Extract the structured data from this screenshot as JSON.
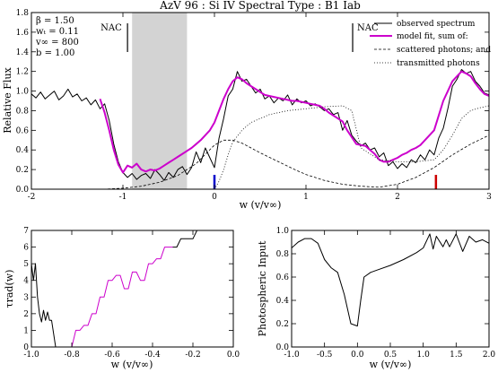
{
  "chart_data": [
    {
      "type": "line",
      "title": "AzV 96 : Si IV     Spectral Type : B1 Iab",
      "xlabel": "w (v/v∞)",
      "ylabel": "Relative Flux",
      "xlim": [
        -2,
        3
      ],
      "ylim": [
        0,
        1.8
      ],
      "xticks": [
        "-2",
        "-1",
        "0",
        "1",
        "2",
        "3"
      ],
      "yticks": [
        "0.0",
        "0.2",
        "0.4",
        "0.6",
        "0.8",
        "1.0",
        "1.2",
        "1.4",
        "1.6",
        "1.8"
      ],
      "params": [
        "β  = 1.50",
        "wₜ = 0.11",
        "v∞ = 800",
        "b  = 1.00"
      ],
      "nac_labels": [
        "NAC",
        "NAC"
      ],
      "nac_x": [
        -0.95,
        1.51
      ],
      "shaded_region": [
        -0.9,
        -0.3
      ],
      "markers": [
        {
          "x": 0.0,
          "color": "#0000cc"
        },
        {
          "x": 2.42,
          "color": "#cc0000"
        }
      ],
      "legend": {
        "position": "top-right",
        "entries": [
          "observed spectrum",
          "model fit, sum of:",
          "scattered photons; and",
          "transmitted photons"
        ]
      },
      "series": [
        {
          "name": "observed spectrum",
          "color": "#000000",
          "x": [
            -2.0,
            -1.95,
            -1.9,
            -1.85,
            -1.8,
            -1.75,
            -1.7,
            -1.65,
            -1.6,
            -1.55,
            -1.5,
            -1.45,
            -1.4,
            -1.35,
            -1.3,
            -1.25,
            -1.2,
            -1.15,
            -1.1,
            -1.05,
            -1.0,
            -0.95,
            -0.9,
            -0.85,
            -0.8,
            -0.75,
            -0.7,
            -0.65,
            -0.6,
            -0.55,
            -0.5,
            -0.45,
            -0.4,
            -0.35,
            -0.3,
            -0.25,
            -0.2,
            -0.15,
            -0.1,
            -0.05,
            0.0,
            0.05,
            0.1,
            0.15,
            0.2,
            0.25,
            0.3,
            0.35,
            0.4,
            0.45,
            0.5,
            0.55,
            0.6,
            0.65,
            0.7,
            0.75,
            0.8,
            0.85,
            0.9,
            0.95,
            1.0,
            1.05,
            1.1,
            1.15,
            1.2,
            1.25,
            1.3,
            1.35,
            1.4,
            1.45,
            1.5,
            1.55,
            1.6,
            1.65,
            1.7,
            1.75,
            1.8,
            1.85,
            1.9,
            1.95,
            2.0,
            2.05,
            2.1,
            2.15,
            2.2,
            2.25,
            2.3,
            2.35,
            2.4,
            2.45,
            2.5,
            2.55,
            2.6,
            2.65,
            2.7,
            2.75,
            2.8,
            2.85,
            2.9,
            2.95,
            3.0
          ],
          "y": [
            0.97,
            0.93,
            0.99,
            0.92,
            0.96,
            1.0,
            0.91,
            0.95,
            1.02,
            0.94,
            0.97,
            0.9,
            0.93,
            0.86,
            0.91,
            0.82,
            0.87,
            0.7,
            0.46,
            0.28,
            0.17,
            0.12,
            0.16,
            0.1,
            0.14,
            0.16,
            0.11,
            0.2,
            0.15,
            0.09,
            0.17,
            0.12,
            0.2,
            0.23,
            0.15,
            0.22,
            0.38,
            0.27,
            0.42,
            0.32,
            0.22,
            0.52,
            0.72,
            0.95,
            1.02,
            1.2,
            1.1,
            1.12,
            1.05,
            0.98,
            1.02,
            0.92,
            0.95,
            0.88,
            0.93,
            0.9,
            0.96,
            0.86,
            0.92,
            0.88,
            0.9,
            0.85,
            0.87,
            0.84,
            0.8,
            0.82,
            0.76,
            0.78,
            0.6,
            0.7,
            0.55,
            0.49,
            0.44,
            0.47,
            0.4,
            0.42,
            0.33,
            0.37,
            0.24,
            0.28,
            0.21,
            0.26,
            0.22,
            0.3,
            0.27,
            0.35,
            0.3,
            0.4,
            0.35,
            0.52,
            0.62,
            0.82,
            1.05,
            1.12,
            1.22,
            1.18,
            1.2,
            1.1,
            1.05,
            0.98,
            0.96
          ]
        },
        {
          "name": "model fit, sum of:",
          "color": "#cc00cc",
          "x": [
            -1.25,
            -1.2,
            -1.15,
            -1.1,
            -1.05,
            -1.0,
            -0.95,
            -0.9,
            -0.85,
            -0.8,
            -0.75,
            -0.7,
            -0.65,
            -0.6,
            -0.55,
            -0.5,
            -0.45,
            -0.4,
            -0.35,
            -0.3,
            -0.25,
            -0.2,
            -0.15,
            -0.1,
            -0.05,
            0.0,
            0.05,
            0.1,
            0.15,
            0.2,
            0.25,
            0.3,
            0.35,
            0.4,
            0.45,
            0.5,
            0.55,
            0.6,
            0.65,
            0.7,
            0.75,
            0.8,
            0.85,
            0.9,
            0.95,
            1.0,
            1.05,
            1.1,
            1.15,
            1.2,
            1.25,
            1.3,
            1.35,
            1.4,
            1.45,
            1.5,
            1.55,
            1.6,
            1.65,
            1.7,
            1.75,
            1.8,
            1.85,
            1.9,
            1.95,
            2.0,
            2.05,
            2.1,
            2.15,
            2.2,
            2.25,
            2.3,
            2.35,
            2.4,
            2.45,
            2.5,
            2.55,
            2.6,
            2.65,
            2.7,
            2.75,
            2.8,
            2.85,
            2.9,
            2.95,
            3.0
          ],
          "y": [
            0.92,
            0.78,
            0.6,
            0.4,
            0.25,
            0.17,
            0.24,
            0.22,
            0.26,
            0.2,
            0.18,
            0.2,
            0.19,
            0.21,
            0.24,
            0.27,
            0.3,
            0.33,
            0.36,
            0.39,
            0.42,
            0.46,
            0.5,
            0.55,
            0.6,
            0.68,
            0.8,
            0.92,
            1.02,
            1.1,
            1.14,
            1.12,
            1.08,
            1.05,
            1.02,
            0.99,
            0.96,
            0.95,
            0.94,
            0.93,
            0.92,
            0.91,
            0.9,
            0.9,
            0.89,
            0.88,
            0.87,
            0.86,
            0.85,
            0.82,
            0.78,
            0.75,
            0.72,
            0.69,
            0.6,
            0.53,
            0.46,
            0.45,
            0.44,
            0.4,
            0.36,
            0.3,
            0.28,
            0.28,
            0.3,
            0.32,
            0.35,
            0.37,
            0.4,
            0.42,
            0.45,
            0.5,
            0.55,
            0.6,
            0.75,
            0.9,
            1.0,
            1.1,
            1.15,
            1.2,
            1.18,
            1.15,
            1.08,
            1.02,
            0.97,
            0.95
          ]
        },
        {
          "name": "scattered photons; and",
          "color": "#000000",
          "dash": "3,2",
          "x": [
            -2.0,
            -1.5,
            -1.2,
            -1.0,
            -0.8,
            -0.6,
            -0.4,
            -0.2,
            0.0,
            0.1,
            0.2,
            0.3,
            0.4,
            0.5,
            0.7,
            0.9,
            1.0,
            1.2,
            1.4,
            1.6,
            1.8,
            2.0,
            2.2,
            2.4,
            2.6,
            2.8,
            3.0
          ],
          "y": [
            0.0,
            0.0,
            0.0,
            0.01,
            0.03,
            0.07,
            0.14,
            0.26,
            0.45,
            0.5,
            0.5,
            0.47,
            0.42,
            0.37,
            0.28,
            0.19,
            0.15,
            0.09,
            0.05,
            0.03,
            0.02,
            0.05,
            0.12,
            0.22,
            0.35,
            0.46,
            0.55
          ]
        },
        {
          "name": "transmitted photons",
          "color": "#000000",
          "dash": "1,2",
          "x": [
            0.0,
            0.05,
            0.1,
            0.15,
            0.2,
            0.3,
            0.4,
            0.6,
            0.8,
            1.0,
            1.2,
            1.4,
            1.5,
            1.6,
            1.8,
            2.0,
            2.2,
            2.4,
            2.5,
            2.6,
            2.7,
            2.8,
            2.9,
            3.0
          ],
          "y": [
            0.0,
            0.08,
            0.2,
            0.35,
            0.48,
            0.6,
            0.68,
            0.76,
            0.8,
            0.82,
            0.84,
            0.85,
            0.8,
            0.42,
            0.3,
            0.28,
            0.28,
            0.3,
            0.4,
            0.55,
            0.72,
            0.8,
            0.83,
            0.85
          ]
        }
      ]
    },
    {
      "type": "line",
      "xlabel": "w (v/v∞)",
      "ylabel": "τrad(w)",
      "xlim": [
        -1.0,
        0.0
      ],
      "ylim": [
        0,
        7
      ],
      "xticks": [
        "-1.0",
        "-0.8",
        "-0.6",
        "-0.4",
        "-0.2",
        "0.0"
      ],
      "yticks": [
        "0",
        "1",
        "2",
        "3",
        "4",
        "5",
        "6",
        "7"
      ],
      "series": [
        {
          "color": "#000000",
          "x": [
            -1.0,
            -0.99,
            -0.98,
            -0.97,
            -0.96,
            -0.95,
            -0.94,
            -0.93,
            -0.92,
            -0.91,
            -0.9,
            -0.88,
            -0.86
          ],
          "y": [
            5.0,
            4.0,
            5.0,
            3.0,
            2.0,
            1.5,
            2.2,
            1.6,
            2.1,
            1.6,
            1.6,
            0.0,
            0.0
          ]
        },
        {
          "color": "#cc00cc",
          "x": [
            -0.86,
            -0.84,
            -0.82,
            -0.8,
            -0.78,
            -0.76,
            -0.74,
            -0.72,
            -0.7,
            -0.68,
            -0.66,
            -0.64,
            -0.62,
            -0.6,
            -0.58,
            -0.56,
            -0.54,
            -0.52,
            -0.5,
            -0.48,
            -0.46,
            -0.44,
            -0.42,
            -0.4,
            -0.38,
            -0.36,
            -0.34,
            -0.32,
            -0.3
          ],
          "y": [
            0.0,
            0.0,
            0.0,
            0.0,
            1.0,
            1.0,
            1.3,
            1.3,
            2.0,
            2.0,
            3.0,
            3.0,
            4.0,
            4.0,
            4.3,
            4.3,
            3.5,
            3.5,
            4.5,
            4.5,
            4.0,
            4.0,
            5.0,
            5.0,
            5.3,
            5.3,
            6.0,
            6.0,
            6.0
          ]
        },
        {
          "color": "#000000",
          "x": [
            -0.3,
            -0.28,
            -0.26,
            -0.24,
            -0.22,
            -0.2,
            -0.18,
            -0.16
          ],
          "y": [
            6.0,
            6.0,
            6.5,
            6.5,
            6.5,
            6.5,
            7.0,
            7.0
          ]
        }
      ]
    },
    {
      "type": "line",
      "xlabel": "w (v/v∞)",
      "ylabel": "Photospheric Input",
      "xlim": [
        -1.0,
        2.0
      ],
      "ylim": [
        0,
        1.0
      ],
      "xticks": [
        "-1.0",
        "-0.5",
        "0.0",
        "0.5",
        "1.0",
        "1.5",
        "2.0"
      ],
      "yticks": [
        "0.0",
        "0.2",
        "0.4",
        "0.6",
        "0.8",
        "1.0"
      ],
      "series": [
        {
          "color": "#000000",
          "x": [
            -1.0,
            -0.9,
            -0.8,
            -0.7,
            -0.6,
            -0.5,
            -0.4,
            -0.3,
            -0.2,
            -0.1,
            0.0,
            0.05,
            0.1,
            0.2,
            0.3,
            0.5,
            0.7,
            0.9,
            1.0,
            1.1,
            1.15,
            1.2,
            1.3,
            1.35,
            1.4,
            1.5,
            1.6,
            1.7,
            1.8,
            1.9,
            2.0
          ],
          "y": [
            0.85,
            0.9,
            0.93,
            0.93,
            0.89,
            0.75,
            0.68,
            0.64,
            0.45,
            0.2,
            0.18,
            0.4,
            0.6,
            0.64,
            0.66,
            0.7,
            0.75,
            0.81,
            0.85,
            0.97,
            0.84,
            0.95,
            0.86,
            0.92,
            0.86,
            0.97,
            0.82,
            0.95,
            0.9,
            0.92,
            0.89
          ]
        }
      ]
    }
  ]
}
